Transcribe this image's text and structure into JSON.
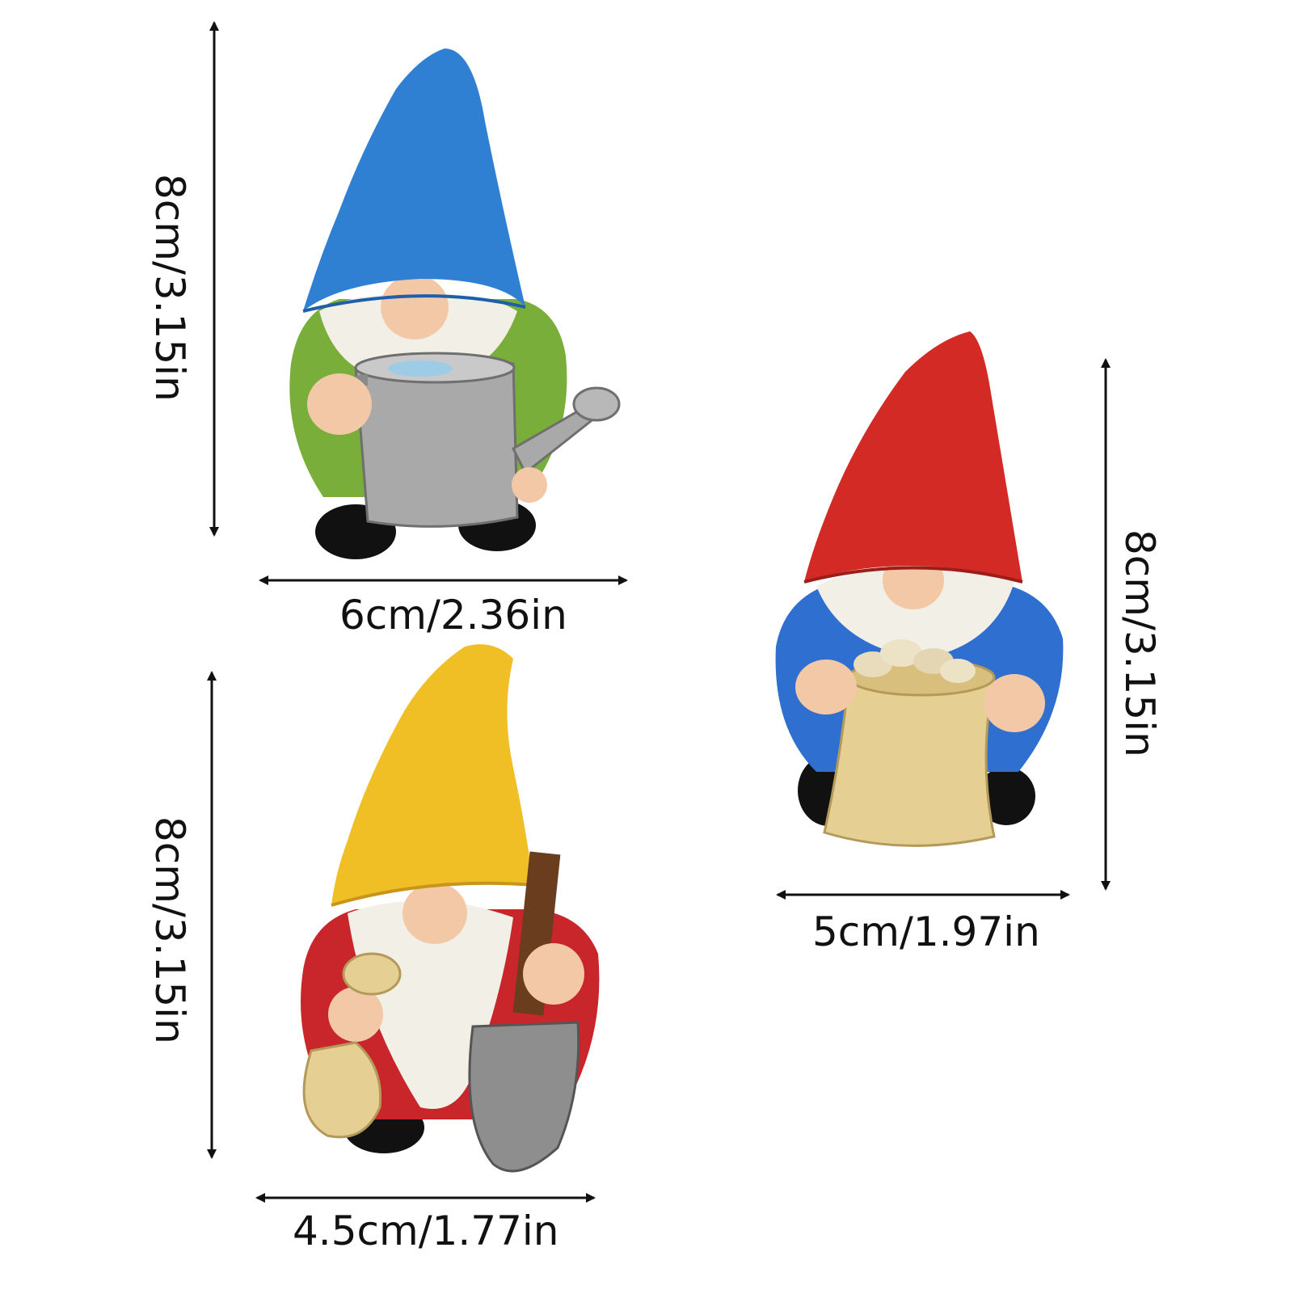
{
  "dimensions": {
    "gnome_blue": {
      "height": "8cm/3.15in",
      "width": "6cm/2.36in"
    },
    "gnome_yellow": {
      "height": "8cm/3.15in",
      "width": "4.5cm/1.77in"
    },
    "gnome_red": {
      "height": "8cm/3.15in",
      "width": "5cm/1.97in"
    }
  },
  "colors": {
    "blue_hat": "#2f7fd3",
    "yellow_hat": "#f0bf25",
    "red_hat": "#d42a26",
    "green_coat": "#7aae3a",
    "red_coat": "#c8262b",
    "blue_coat": "#2f6fd0",
    "beard": "#f1efe6",
    "skin": "#f2c8a6",
    "boots": "#111111",
    "sack": "#e6cf92",
    "metal": "#a9a9a9"
  }
}
